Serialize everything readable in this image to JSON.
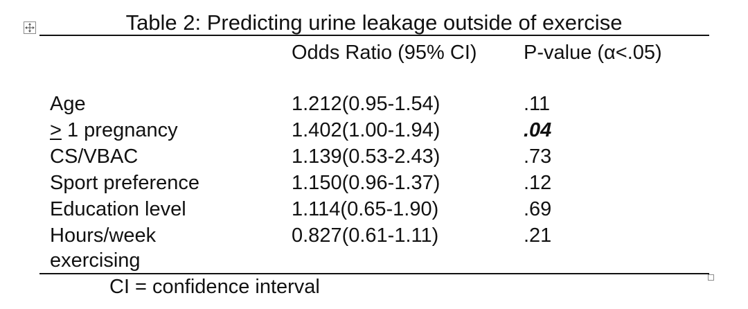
{
  "table": {
    "title": "Table 2: Predicting urine leakage outside of exercise",
    "headers": {
      "label": "",
      "odds_ratio": "Odds Ratio (95% CI)",
      "p_value": "P-value (α<.05)"
    },
    "rows": [
      {
        "label": "Age",
        "odds_ratio": "1.212(0.95-1.54)",
        "p_value": ".11"
      },
      {
        "label_symbol": ">",
        "label_rest": " 1 pregnancy",
        "odds_ratio": "1.402(1.00-1.94)",
        "p_value": ".04",
        "p_value_emphasized": true
      },
      {
        "label": "CS/VBAC",
        "odds_ratio": "1.139(0.53-2.43)",
        "p_value": ".73"
      },
      {
        "label": "Sport preference",
        "odds_ratio": "1.150(0.96-1.37)",
        "p_value": ".12"
      },
      {
        "label": "Education level",
        "odds_ratio": "1.114(0.65-1.90)",
        "p_value": ".69"
      },
      {
        "label_line1": "Hours/week",
        "label_line2": "exercising",
        "odds_ratio": "0.827(0.61-1.11)",
        "p_value": ".21"
      }
    ],
    "footnote": "CI = confidence interval"
  },
  "icons": {
    "move_handle": "move-arrows-icon",
    "resize_handle": "resize-square-icon"
  }
}
